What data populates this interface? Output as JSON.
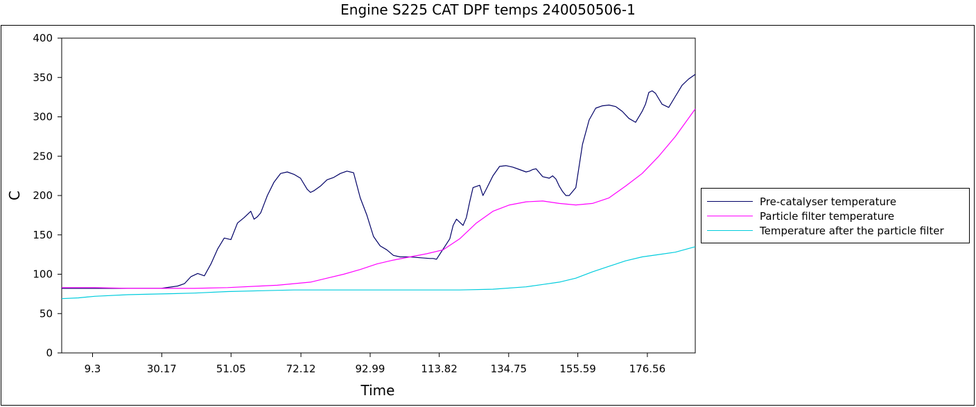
{
  "chart_data": {
    "type": "line",
    "title": "Engine S225  CAT DPF temps 240050506-1",
    "xlabel": "Time",
    "ylabel": "C",
    "xlim": [
      0,
      191
    ],
    "ylim": [
      0,
      400
    ],
    "yticks": [
      0,
      50,
      100,
      150,
      200,
      250,
      300,
      350,
      400
    ],
    "xtick_values": [
      9.3,
      30.17,
      51.05,
      72.12,
      92.99,
      113.82,
      134.75,
      155.59,
      176.56
    ],
    "xtick_labels": [
      "9.3",
      "30.17",
      "51.05",
      "72.12",
      "92.99",
      "113.82",
      "134.75",
      "155.59",
      "176.56"
    ],
    "grid": false,
    "legend_position": "right",
    "series": [
      {
        "name": "Pre-catalyser temperature",
        "color": "#000066",
        "x": [
          0,
          10,
          20,
          30,
          35,
          37,
          39,
          41,
          43,
          45,
          47,
          49,
          51,
          53,
          55,
          57,
          58,
          59,
          60,
          62,
          64,
          66,
          68,
          70,
          72,
          74,
          75,
          76,
          78,
          80,
          82,
          84,
          86,
          88,
          90,
          92,
          94,
          96,
          98,
          100,
          102,
          105,
          108,
          111,
          112,
          113,
          115,
          117,
          118,
          119,
          121,
          122,
          123,
          124,
          126,
          127,
          128,
          130,
          132,
          134,
          136,
          138,
          140,
          141,
          142,
          143,
          145,
          147,
          148,
          149,
          150,
          151,
          152,
          153,
          155,
          157,
          159,
          161,
          163,
          165,
          167,
          169,
          171,
          173,
          175,
          176,
          177,
          178,
          179,
          181,
          183,
          185,
          187,
          189,
          191
        ],
        "y": [
          82,
          82,
          82,
          82,
          85,
          88,
          97,
          101,
          98,
          113,
          132,
          146,
          144,
          165,
          172,
          180,
          170,
          173,
          178,
          200,
          217,
          228,
          230,
          227,
          222,
          208,
          204,
          206,
          212,
          220,
          223,
          228,
          231,
          229,
          197,
          175,
          148,
          136,
          131,
          124,
          122,
          122,
          121,
          120,
          120,
          119,
          132,
          145,
          162,
          170,
          162,
          172,
          192,
          210,
          213,
          200,
          208,
          225,
          237,
          238,
          236,
          233,
          230,
          231,
          233,
          234,
          224,
          222,
          225,
          221,
          212,
          205,
          200,
          200,
          210,
          265,
          296,
          311,
          314,
          315,
          313,
          307,
          298,
          293,
          307,
          316,
          331,
          333,
          330,
          316,
          312,
          326,
          340,
          348,
          354
        ]
      },
      {
        "name": "Particle filter temperature",
        "color": "#ff00ff",
        "x": [
          0,
          10,
          20,
          30,
          40,
          50,
          60,
          65,
          70,
          75,
          80,
          85,
          90,
          95,
          100,
          105,
          110,
          115,
          120,
          125,
          130,
          135,
          140,
          145,
          150,
          155,
          160,
          165,
          170,
          175,
          180,
          185,
          191
        ],
        "y": [
          83,
          83,
          82,
          82,
          82,
          83,
          85,
          86,
          88,
          90,
          95,
          100,
          106,
          113,
          118,
          122,
          126,
          131,
          145,
          165,
          180,
          188,
          192,
          193,
          190,
          188,
          190,
          197,
          212,
          228,
          250,
          275,
          310
        ]
      },
      {
        "name": "Temperature after the particle filter",
        "color": "#00ccdd",
        "x": [
          0,
          5,
          10,
          20,
          30,
          40,
          50,
          60,
          70,
          80,
          90,
          100,
          110,
          120,
          130,
          140,
          145,
          150,
          155,
          160,
          165,
          170,
          175,
          180,
          185,
          191
        ],
        "y": [
          69,
          70,
          72,
          74,
          75,
          76,
          78,
          79,
          80,
          80,
          80,
          80,
          80,
          80,
          81,
          84,
          87,
          90,
          95,
          103,
          110,
          117,
          122,
          125,
          128,
          135
        ]
      }
    ]
  }
}
